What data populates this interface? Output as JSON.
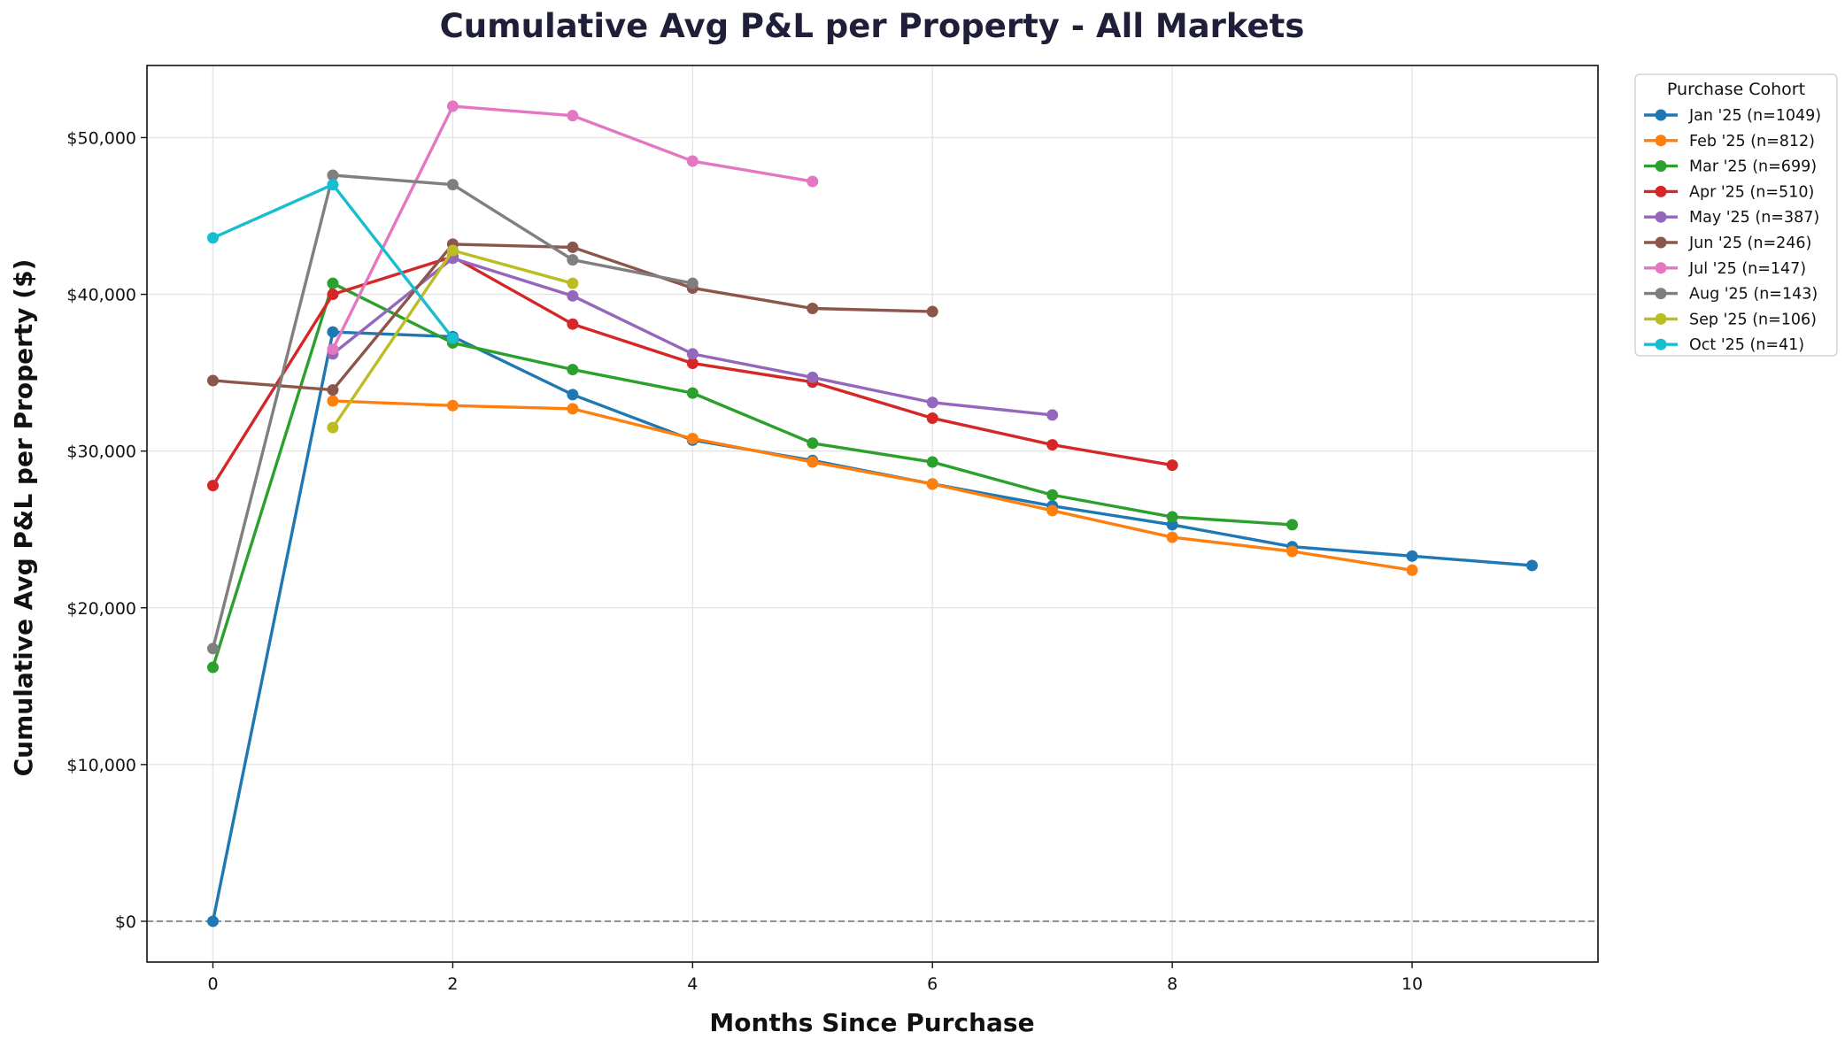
{
  "chart_data": {
    "type": "line",
    "title": "Cumulative Avg P&L per Property - All Markets",
    "xlabel": "Months Since Purchase",
    "ylabel": "Cumulative Avg P&L per Property ($)",
    "xlim": [
      -0.55,
      11.55
    ],
    "ylim": [
      -2600,
      54600
    ],
    "xticks": [
      0,
      2,
      4,
      6,
      8,
      10
    ],
    "xtick_labels": [
      "0",
      "2",
      "4",
      "6",
      "8",
      "10"
    ],
    "yticks": [
      0,
      10000,
      20000,
      30000,
      40000,
      50000
    ],
    "ytick_labels": [
      "$0",
      "$10,000",
      "$20,000",
      "$30,000",
      "$40,000",
      "$50,000"
    ],
    "grid": true,
    "zero_reference_line": 0,
    "legend": {
      "title": "Purchase Cohort",
      "placement": "outside-right"
    },
    "series": [
      {
        "name": "Jan '25 (n=1049)",
        "color": "#1f77b4",
        "x": [
          0,
          1,
          2,
          3,
          4,
          5,
          6,
          7,
          8,
          9,
          10,
          11
        ],
        "values": [
          0,
          37600,
          37300,
          33600,
          30700,
          29400,
          27900,
          26500,
          25300,
          23900,
          23300,
          22700
        ]
      },
      {
        "name": "Feb '25 (n=812)",
        "color": "#ff7f0e",
        "x": [
          1,
          2,
          3,
          4,
          5,
          6,
          7,
          8,
          9,
          10
        ],
        "values": [
          33200,
          32900,
          32700,
          30800,
          29300,
          27900,
          26200,
          24500,
          23600,
          22400
        ]
      },
      {
        "name": "Mar '25 (n=699)",
        "color": "#2ca02c",
        "x": [
          0,
          1,
          2,
          3,
          4,
          5,
          6,
          7,
          8,
          9
        ],
        "values": [
          16200,
          40700,
          36900,
          35200,
          33700,
          30500,
          29300,
          27200,
          25800,
          25300
        ]
      },
      {
        "name": "Apr '25 (n=510)",
        "color": "#d62728",
        "x": [
          0,
          1,
          2,
          3,
          4,
          5,
          6,
          7,
          8
        ],
        "values": [
          27800,
          40000,
          42400,
          38100,
          35600,
          34400,
          32100,
          30400,
          29100
        ]
      },
      {
        "name": "May '25 (n=387)",
        "color": "#9467bd",
        "x": [
          1,
          2,
          3,
          4,
          5,
          6,
          7
        ],
        "values": [
          36200,
          42300,
          39900,
          36200,
          34700,
          33100,
          32300
        ]
      },
      {
        "name": "Jun '25 (n=246)",
        "color": "#8c564b",
        "x": [
          0,
          1,
          2,
          3,
          4,
          5,
          6
        ],
        "values": [
          34500,
          33900,
          43200,
          43000,
          40400,
          39100,
          38900
        ]
      },
      {
        "name": "Jul '25 (n=147)",
        "color": "#e377c2",
        "x": [
          1,
          2,
          3,
          4,
          5
        ],
        "values": [
          36500,
          52000,
          51400,
          48500,
          47200
        ]
      },
      {
        "name": "Aug '25 (n=143)",
        "color": "#7f7f7f",
        "x": [
          0,
          1,
          2,
          3,
          4
        ],
        "values": [
          17400,
          47600,
          47000,
          42200,
          40700
        ]
      },
      {
        "name": "Sep '25 (n=106)",
        "color": "#bcbd22",
        "x": [
          1,
          2,
          3
        ],
        "values": [
          31500,
          42800,
          40700
        ]
      },
      {
        "name": "Oct '25 (n=41)",
        "color": "#17becf",
        "x": [
          0,
          1,
          2
        ],
        "values": [
          43600,
          47000,
          37200
        ]
      }
    ]
  }
}
